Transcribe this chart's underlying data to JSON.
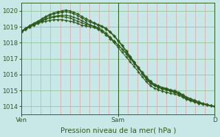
{
  "bg_color": "#c8e8e8",
  "grid_color_v": "#e8a0a0",
  "grid_color_h": "#88bb88",
  "line_color": "#2d5a1b",
  "marker_color": "#2d5a1b",
  "ylabel_ticks": [
    1014,
    1015,
    1016,
    1017,
    1018,
    1019,
    1020
  ],
  "ylim": [
    1013.5,
    1020.5
  ],
  "xlabel": "Pression niveau de la mer( hPa )",
  "xlabel_fontsize": 7.5,
  "tick_fontsize": 6.5,
  "xtick_labels": [
    "Ven",
    "",
    "",
    "",
    "",
    "Sam",
    "",
    "",
    "",
    "",
    "D"
  ],
  "xtick_positions": [
    0.0,
    0.1,
    0.2,
    0.3,
    0.4,
    0.5,
    0.6,
    0.7,
    0.8,
    0.9,
    1.0
  ],
  "xtick_display": [
    "Ven",
    "Sam",
    "D"
  ],
  "xtick_display_pos": [
    0.0,
    0.5,
    1.0
  ],
  "vline_positions": [
    0.0,
    0.5,
    1.0
  ],
  "n_points": 49,
  "series": [
    [
      1018.7,
      1018.85,
      1019.0,
      1019.1,
      1019.2,
      1019.3,
      1019.35,
      1019.4,
      1019.45,
      1019.45,
      1019.45,
      1019.4,
      1019.35,
      1019.3,
      1019.2,
      1019.1,
      1019.05,
      1019.0,
      1018.95,
      1018.85,
      1018.7,
      1018.5,
      1018.3,
      1018.1,
      1017.85,
      1017.6,
      1017.35,
      1017.05,
      1016.75,
      1016.45,
      1016.15,
      1015.85,
      1015.6,
      1015.4,
      1015.3,
      1015.2,
      1015.15,
      1015.05,
      1015.0,
      1014.9,
      1014.75,
      1014.6,
      1014.5,
      1014.4,
      1014.3,
      1014.2,
      1014.15,
      1014.05,
      1014.0
    ],
    [
      1018.75,
      1018.9,
      1019.05,
      1019.15,
      1019.25,
      1019.4,
      1019.5,
      1019.55,
      1019.6,
      1019.65,
      1019.65,
      1019.6,
      1019.55,
      1019.45,
      1019.35,
      1019.25,
      1019.15,
      1019.1,
      1019.05,
      1018.95,
      1018.8,
      1018.6,
      1018.35,
      1018.1,
      1017.85,
      1017.6,
      1017.3,
      1017.0,
      1016.7,
      1016.4,
      1016.1,
      1015.8,
      1015.55,
      1015.35,
      1015.25,
      1015.15,
      1015.1,
      1015.0,
      1014.95,
      1014.85,
      1014.7,
      1014.55,
      1014.45,
      1014.35,
      1014.25,
      1014.2,
      1014.1,
      1014.05,
      1014.0
    ],
    [
      1018.7,
      1018.88,
      1019.05,
      1019.18,
      1019.3,
      1019.45,
      1019.6,
      1019.7,
      1019.8,
      1019.88,
      1019.92,
      1019.95,
      1019.9,
      1019.82,
      1019.7,
      1019.55,
      1019.4,
      1019.3,
      1019.2,
      1019.1,
      1019.0,
      1018.85,
      1018.65,
      1018.4,
      1018.1,
      1017.8,
      1017.45,
      1017.1,
      1016.75,
      1016.4,
      1016.05,
      1015.7,
      1015.45,
      1015.3,
      1015.2,
      1015.1,
      1015.05,
      1014.95,
      1014.9,
      1014.8,
      1014.65,
      1014.5,
      1014.4,
      1014.3,
      1014.2,
      1014.15,
      1014.1,
      1014.05,
      1014.0
    ],
    [
      1018.7,
      1018.9,
      1019.08,
      1019.22,
      1019.35,
      1019.5,
      1019.65,
      1019.78,
      1019.88,
      1019.95,
      1020.0,
      1020.05,
      1020.0,
      1019.92,
      1019.8,
      1019.65,
      1019.5,
      1019.38,
      1019.25,
      1019.15,
      1019.05,
      1018.9,
      1018.7,
      1018.45,
      1018.15,
      1017.85,
      1017.5,
      1017.15,
      1016.8,
      1016.45,
      1016.1,
      1015.75,
      1015.5,
      1015.35,
      1015.2,
      1015.1,
      1015.05,
      1014.95,
      1014.9,
      1014.8,
      1014.65,
      1014.5,
      1014.4,
      1014.3,
      1014.2,
      1014.15,
      1014.1,
      1014.05,
      1014.0
    ],
    [
      1018.65,
      1018.82,
      1018.98,
      1019.1,
      1019.22,
      1019.35,
      1019.48,
      1019.58,
      1019.65,
      1019.7,
      1019.72,
      1019.72,
      1019.68,
      1019.6,
      1019.5,
      1019.38,
      1019.25,
      1019.12,
      1019.0,
      1018.88,
      1018.7,
      1018.5,
      1018.25,
      1018.0,
      1017.7,
      1017.4,
      1017.1,
      1016.8,
      1016.5,
      1016.18,
      1015.85,
      1015.55,
      1015.3,
      1015.15,
      1015.05,
      1014.95,
      1014.9,
      1014.82,
      1014.78,
      1014.7,
      1014.58,
      1014.45,
      1014.35,
      1014.28,
      1014.2,
      1014.15,
      1014.1,
      1014.05,
      1014.0
    ]
  ]
}
